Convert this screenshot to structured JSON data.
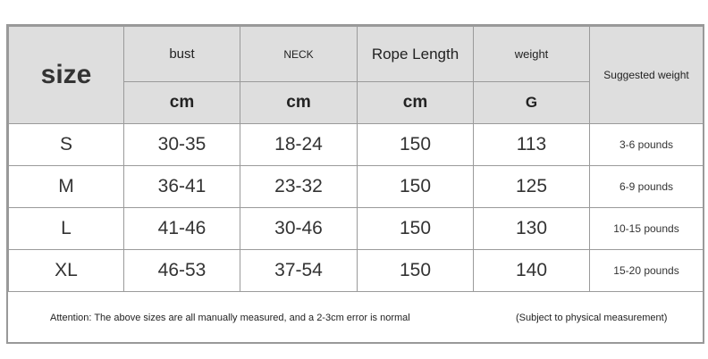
{
  "header": {
    "size": "size",
    "columns": [
      {
        "label": "bust",
        "unit": "cm"
      },
      {
        "label": "NECK",
        "unit": "cm"
      },
      {
        "label": "Rope Length",
        "unit": "cm"
      },
      {
        "label": "weight",
        "unit": "G"
      }
    ],
    "suggested": "Suggested weight"
  },
  "rows": [
    {
      "size": "S",
      "bust": "30-35",
      "neck": "18-24",
      "rope": "150",
      "weight": "113",
      "suggested": "3-6 pounds"
    },
    {
      "size": "M",
      "bust": "36-41",
      "neck": "23-32",
      "rope": "150",
      "weight": "125",
      "suggested": "6-9 pounds"
    },
    {
      "size": "L",
      "bust": "41-46",
      "neck": "30-46",
      "rope": "150",
      "weight": "130",
      "suggested": "10-15 pounds"
    },
    {
      "size": "XL",
      "bust": "46-53",
      "neck": "37-54",
      "rope": "150",
      "weight": "140",
      "suggested": "15-20 pounds"
    }
  ],
  "footer": {
    "note": "Attention: The above sizes are all manually measured, and a 2-3cm error is normal",
    "subject": "(Subject to physical measurement)"
  }
}
